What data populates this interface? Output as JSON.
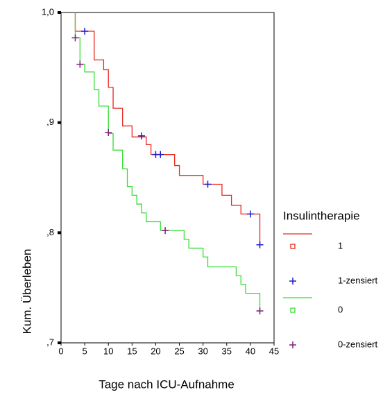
{
  "chart_data": {
    "type": "survival",
    "x_label": "Tage nach ICU-Aufnahme",
    "y_label": "Kum. Überleben",
    "legend_title": "Insulintherapie",
    "legend": "right",
    "xlim": [
      0,
      45
    ],
    "xticks": [
      0,
      5,
      10,
      15,
      20,
      25,
      30,
      35,
      40,
      45
    ],
    "ylim": [
      0.7,
      1.0
    ],
    "yticks": [
      {
        "value": 0.7,
        "label": ",7"
      },
      {
        "value": 0.8,
        "label": ",8"
      },
      {
        "value": 0.9,
        "label": ",9"
      },
      {
        "value": 1.0,
        "label": "1,0"
      }
    ],
    "series": [
      {
        "name": "1",
        "color": "#e8261d",
        "style": "step",
        "x": [
          3,
          3,
          7,
          9,
          10,
          11,
          13,
          15,
          18,
          19,
          24,
          25,
          30,
          34,
          36,
          38,
          42
        ],
        "values": [
          1.0,
          0.983,
          0.957,
          0.948,
          0.932,
          0.913,
          0.897,
          0.887,
          0.88,
          0.871,
          0.861,
          0.852,
          0.844,
          0.834,
          0.825,
          0.817,
          0.789
        ]
      },
      {
        "name": "1-zensiert",
        "color": "#1a1acc",
        "style": "censor",
        "x": [
          5,
          17,
          20,
          21,
          31,
          40,
          42
        ],
        "values": [
          0.983,
          0.888,
          0.871,
          0.871,
          0.844,
          0.817,
          0.789
        ]
      },
      {
        "name": "0",
        "color": "#33dd33",
        "style": "step",
        "x": [
          3,
          3,
          4,
          5,
          7,
          8,
          10,
          11,
          13,
          14,
          15,
          16,
          17,
          18,
          21,
          26,
          27,
          30,
          31,
          37,
          38,
          39,
          42
        ],
        "values": [
          1.0,
          0.977,
          0.953,
          0.946,
          0.93,
          0.915,
          0.89,
          0.875,
          0.858,
          0.842,
          0.834,
          0.826,
          0.818,
          0.81,
          0.802,
          0.794,
          0.786,
          0.778,
          0.769,
          0.761,
          0.753,
          0.745,
          0.729
        ]
      },
      {
        "name": "0-zensiert",
        "color": "#7b1f7b",
        "style": "censor",
        "x": [
          3,
          4,
          10,
          22,
          42
        ],
        "values": [
          0.977,
          0.953,
          0.891,
          0.802,
          0.729
        ]
      }
    ]
  }
}
